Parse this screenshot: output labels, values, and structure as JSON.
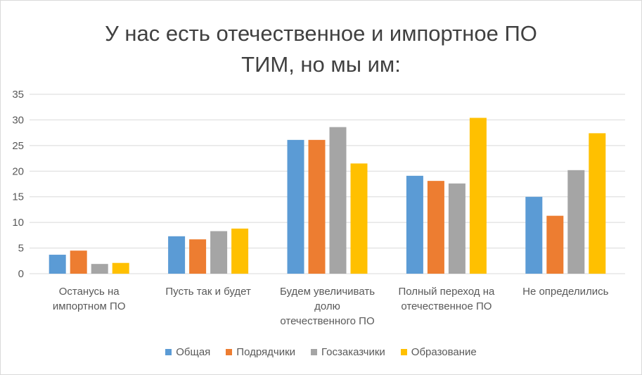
{
  "chart_data": {
    "type": "bar",
    "title": "У нас есть отечественное и импортное  ПО ТИМ, но мы им:",
    "title_lines": [
      "У нас есть отечественное и импортное  ПО",
      "ТИМ, но мы им:"
    ],
    "categories": [
      [
        "Останусь на",
        "импортном ПО"
      ],
      [
        "Пусть так и будет"
      ],
      [
        "Будем увеличивать",
        "долю",
        "отечественного ПО"
      ],
      [
        "Полный переход на",
        "отечественное  ПО"
      ],
      [
        "Не определились"
      ]
    ],
    "series": [
      {
        "name": "Общая",
        "color": "#5b9bd5",
        "values": [
          3.7,
          7.3,
          26.1,
          19.1,
          15.0
        ]
      },
      {
        "name": "Подрядчики",
        "color": "#ed7d31",
        "values": [
          4.5,
          6.7,
          26.1,
          18.1,
          11.3
        ]
      },
      {
        "name": "Госзаказчики",
        "color": "#a5a5a5",
        "values": [
          1.9,
          8.3,
          28.6,
          17.6,
          20.2
        ]
      },
      {
        "name": "Образование",
        "color": "#ffc000",
        "values": [
          2.1,
          8.8,
          21.5,
          30.4,
          27.4
        ]
      }
    ],
    "ylim": [
      0,
      35
    ],
    "yticks": [
      "0",
      "5",
      "10",
      "15",
      "20",
      "25",
      "30",
      "35"
    ],
    "grid": true,
    "legend_position": "bottom",
    "xlabel": "",
    "ylabel": ""
  }
}
